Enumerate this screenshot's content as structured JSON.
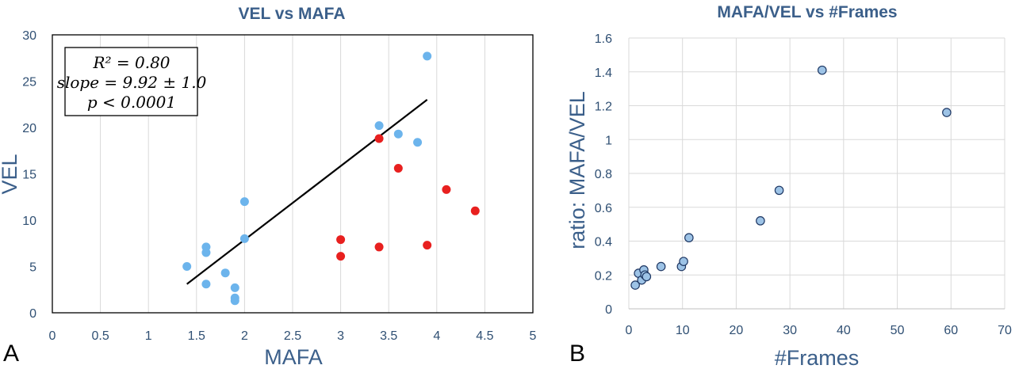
{
  "chart_data": [
    {
      "type": "scatter",
      "panel_label": "A",
      "title": "VEL vs MAFA",
      "xlabel": "MAFA",
      "ylabel": "VEL",
      "xlim": [
        0,
        5
      ],
      "ylim": [
        0,
        30
      ],
      "x_ticks": [
        "0",
        "0.5",
        "1",
        "1.5",
        "2",
        "2.5",
        "3",
        "3.5",
        "4",
        "4.5",
        "5"
      ],
      "y_ticks": [
        "0",
        "5",
        "10",
        "15",
        "20",
        "25",
        "30"
      ],
      "grid": "vertical",
      "colors": {
        "blue": "#6cb4ec",
        "red": "#e8201f",
        "line": "#000000"
      },
      "series": [
        {
          "color": "#6cb4ec",
          "points": [
            [
              1.4,
              5.0
            ],
            [
              1.6,
              7.1
            ],
            [
              1.6,
              6.5
            ],
            [
              1.6,
              3.1
            ],
            [
              1.8,
              4.3
            ],
            [
              1.9,
              2.7
            ],
            [
              1.9,
              1.6
            ],
            [
              1.9,
              1.3
            ],
            [
              2.0,
              12.0
            ],
            [
              2.0,
              8.0
            ],
            [
              3.4,
              20.2
            ],
            [
              3.6,
              19.3
            ],
            [
              3.8,
              18.4
            ],
            [
              3.9,
              27.7
            ]
          ]
        },
        {
          "color": "#e8201f",
          "points": [
            [
              3.0,
              7.9
            ],
            [
              3.0,
              6.1
            ],
            [
              3.4,
              18.8
            ],
            [
              3.4,
              7.1
            ],
            [
              3.6,
              15.6
            ],
            [
              3.9,
              7.3
            ],
            [
              4.1,
              13.3
            ],
            [
              4.4,
              11.0
            ]
          ]
        }
      ],
      "fit_line": {
        "x": [
          1.4,
          3.9
        ],
        "y": [
          3.1,
          23.0
        ]
      },
      "annotation": [
        "R² = 0.80",
        "slope = 9.92 ± 1.0",
        "p < 0.0001"
      ]
    },
    {
      "type": "scatter",
      "panel_label": "B",
      "title": "MAFA/VEL vs #Frames",
      "xlabel": "#Frames",
      "ylabel": "ratio: MAFA/VEL",
      "xlim": [
        0,
        70
      ],
      "ylim": [
        0,
        1.6
      ],
      "x_ticks": [
        "0",
        "10",
        "20",
        "30",
        "40",
        "50",
        "60",
        "70"
      ],
      "y_ticks": [
        "0",
        "0.2",
        "0.4",
        "0.6",
        "0.8",
        "1",
        "1.2",
        "1.4",
        "1.6"
      ],
      "grid": "both",
      "colors": {
        "fill": "#9dc3e6",
        "stroke": "#1f3864"
      },
      "points": [
        [
          1.2,
          0.14
        ],
        [
          1.8,
          0.21
        ],
        [
          2.4,
          0.17
        ],
        [
          2.8,
          0.23
        ],
        [
          3.0,
          0.2
        ],
        [
          3.3,
          0.19
        ],
        [
          6.0,
          0.25
        ],
        [
          9.8,
          0.25
        ],
        [
          10.2,
          0.28
        ],
        [
          11.2,
          0.42
        ],
        [
          24.5,
          0.52
        ],
        [
          28.0,
          0.7
        ],
        [
          36.0,
          1.41
        ],
        [
          59.2,
          1.16
        ]
      ]
    }
  ]
}
